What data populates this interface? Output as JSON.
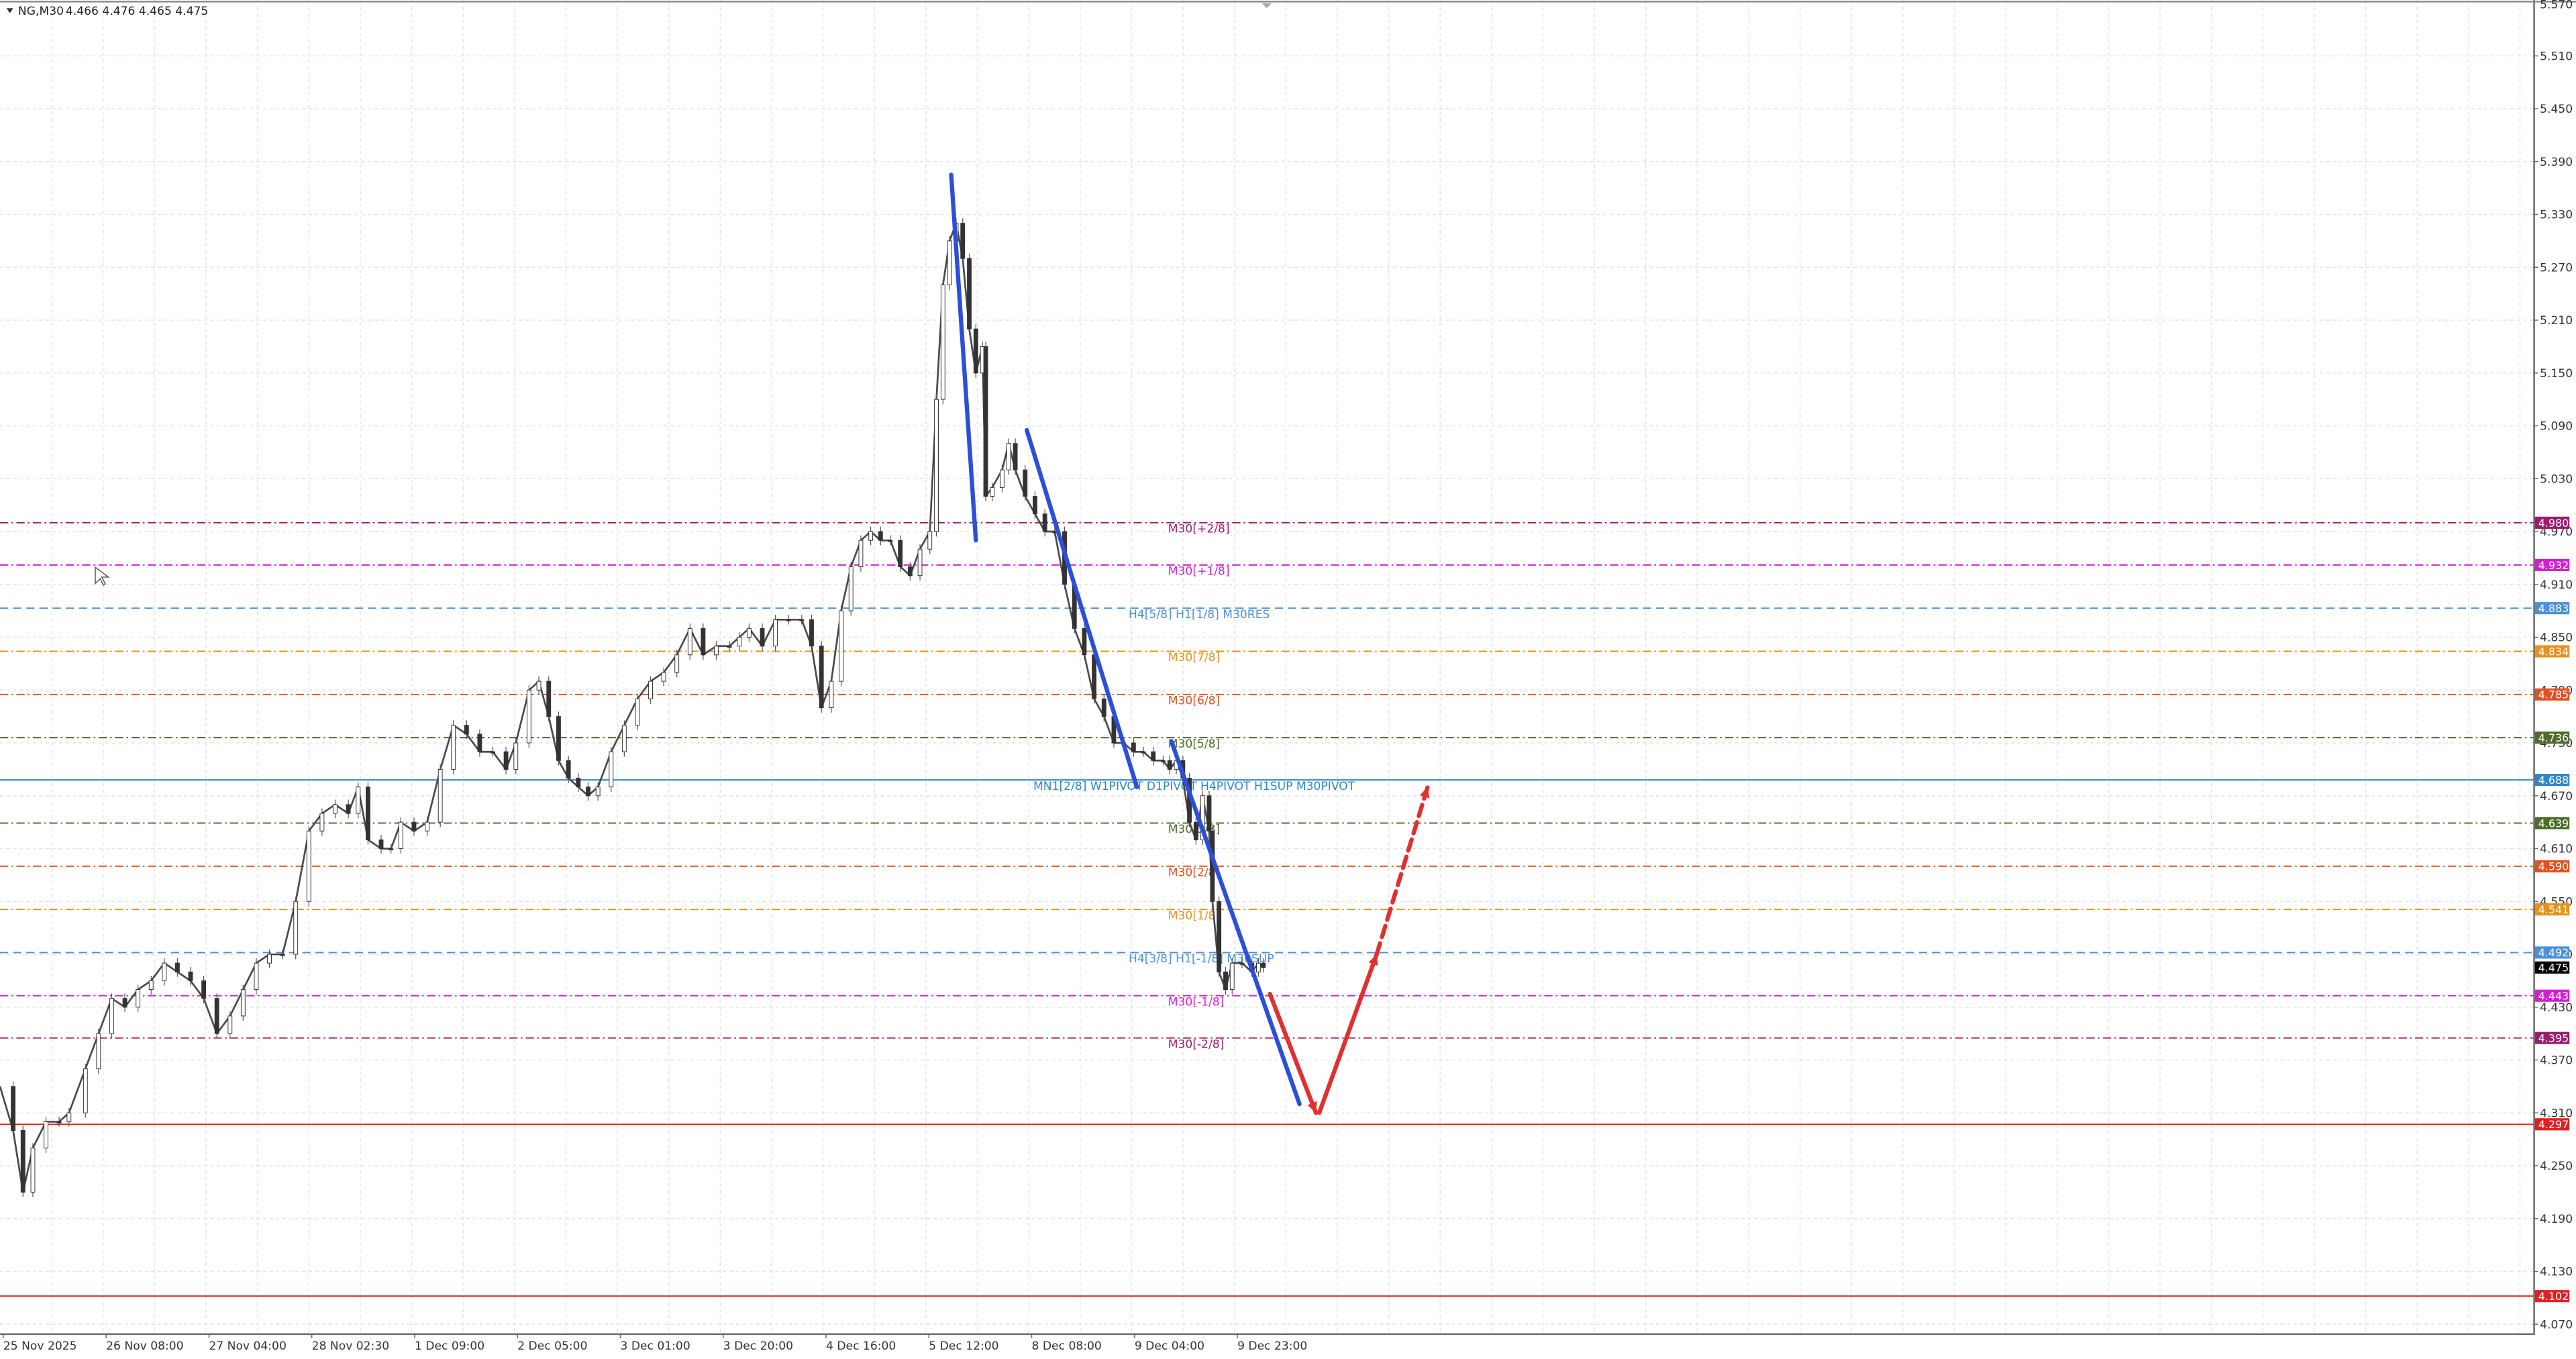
{
  "header": {
    "symbol_label": "NG,M30",
    "ohlc": "4.466 4.476 4.465 4.475"
  },
  "chart_data": {
    "type": "candlestick",
    "symbol": "NG",
    "timeframe": "M30",
    "ylim": [
      4.03,
      5.57
    ],
    "grid": true,
    "y_ticks": [
      "5.510",
      "5.450",
      "5.390",
      "5.330",
      "5.270",
      "5.210",
      "5.150",
      "5.090",
      "5.030",
      "4.970",
      "4.910",
      "4.850",
      "4.790",
      "4.730",
      "4.670",
      "4.610",
      "4.550",
      "4.490",
      "4.430",
      "4.370",
      "4.310",
      "4.250",
      "4.190",
      "4.130",
      "4.070"
    ],
    "x_labels": [
      "25 Nov 2025",
      "26 Nov 08:00",
      "27 Nov 04:00",
      "28 Nov 02:30",
      "1 Dec 09:00",
      "2 Dec 05:00",
      "3 Dec 01:00",
      "3 Dec 20:00",
      "4 Dec 16:00",
      "5 Dec 12:00",
      "8 Dec 08:00",
      "9 Dec 04:00",
      "9 Dec 23:00"
    ],
    "levels": [
      {
        "name": "M30[+2/8]",
        "value": 4.98,
        "color": "#9c1c6c",
        "price_label": "4.980",
        "label": "M30[+2/8]"
      },
      {
        "name": "M30[+1/8]",
        "value": 4.932,
        "color": "#d21fd2",
        "price_label": "4.932",
        "label": "M30[+1/8]"
      },
      {
        "name": "H4[5/8] H1[1/8] M30RES",
        "value": 4.883,
        "color": "#4a90d9",
        "price_label": "4.883",
        "label": "H4[5/8] H1[1/8] M30RES"
      },
      {
        "name": "M30[7/8]",
        "value": 4.834,
        "color": "#e8901a",
        "price_label": "4.834",
        "label": "M30[7/8]"
      },
      {
        "name": "M30[6/8]",
        "value": 4.785,
        "color": "#e05020",
        "price_label": "4.785",
        "label": "M30[6/8]"
      },
      {
        "name": "M30[5/8]",
        "value": 4.736,
        "color": "#4e6b2a",
        "price_label": "4.736",
        "label": "M30[5/8]"
      },
      {
        "name": "MN1[2/8] W1PIVOT D1PIVOT H4PIVOT H1SUP M30PIVOT",
        "value": 4.688,
        "color": "#2e86c8",
        "price_label": "4.688",
        "label": "MN1[2/8] W1PIVOT D1PIVOT H4PIVOT H1SUP M30PIVOT"
      },
      {
        "name": "M30[3/8]",
        "value": 4.639,
        "color": "#4e6b2a",
        "price_label": "4.639",
        "label": "M30[3/8]"
      },
      {
        "name": "M30[2/8]",
        "value": 4.59,
        "color": "#e05020",
        "price_label": "4.590",
        "label": "M30[2/8]"
      },
      {
        "name": "M30[1/8]",
        "value": 4.541,
        "color": "#e8901a",
        "price_label": "4.541",
        "label": "M30[1/8]"
      },
      {
        "name": "H4[3/8] H1[-1/8] M30SUP",
        "value": 4.492,
        "color": "#4a90d9",
        "price_label": "4.492",
        "label": "H4[3/8] H1[-1/8] M30SUP"
      },
      {
        "name": "M30[-1/8]",
        "value": 4.443,
        "color": "#d21fd2",
        "price_label": "4.443",
        "label": "M30[-1/8]"
      },
      {
        "name": "M30[-2/8]",
        "value": 4.395,
        "color": "#9c1c6c",
        "price_label": "4.395",
        "label": "M30[-2/8]"
      },
      {
        "name": "support-1",
        "value": 4.297,
        "color": "#e02020",
        "price_label": "4.297",
        "label": ""
      },
      {
        "name": "support-2",
        "value": 4.102,
        "color": "#e02020",
        "price_label": "4.102",
        "label": ""
      }
    ],
    "current_price": {
      "value": 4.475,
      "price_label": "4.475",
      "color": "#000000"
    },
    "close_path": [
      [
        0,
        4.34
      ],
      [
        8,
        4.29
      ],
      [
        14,
        4.22
      ],
      [
        20,
        4.27
      ],
      [
        28,
        4.3
      ],
      [
        36,
        4.3
      ],
      [
        42,
        4.31
      ],
      [
        52,
        4.36
      ],
      [
        60,
        4.4
      ],
      [
        68,
        4.44
      ],
      [
        76,
        4.43
      ],
      [
        84,
        4.45
      ],
      [
        92,
        4.46
      ],
      [
        100,
        4.48
      ],
      [
        108,
        4.47
      ],
      [
        116,
        4.46
      ],
      [
        124,
        4.44
      ],
      [
        132,
        4.4
      ],
      [
        140,
        4.42
      ],
      [
        148,
        4.45
      ],
      [
        156,
        4.48
      ],
      [
        164,
        4.49
      ],
      [
        172,
        4.49
      ],
      [
        180,
        4.55
      ],
      [
        188,
        4.63
      ],
      [
        196,
        4.65
      ],
      [
        204,
        4.66
      ],
      [
        212,
        4.65
      ],
      [
        218,
        4.68
      ],
      [
        224,
        4.62
      ],
      [
        232,
        4.61
      ],
      [
        238,
        4.61
      ],
      [
        244,
        4.64
      ],
      [
        252,
        4.63
      ],
      [
        260,
        4.64
      ],
      [
        268,
        4.7
      ],
      [
        276,
        4.75
      ],
      [
        284,
        4.74
      ],
      [
        292,
        4.72
      ],
      [
        300,
        4.72
      ],
      [
        308,
        4.7
      ],
      [
        314,
        4.73
      ],
      [
        322,
        4.79
      ],
      [
        328,
        4.8
      ],
      [
        334,
        4.76
      ],
      [
        340,
        4.71
      ],
      [
        346,
        4.69
      ],
      [
        352,
        4.68
      ],
      [
        358,
        4.67
      ],
      [
        364,
        4.68
      ],
      [
        372,
        4.72
      ],
      [
        380,
        4.75
      ],
      [
        388,
        4.78
      ],
      [
        396,
        4.8
      ],
      [
        404,
        4.81
      ],
      [
        412,
        4.83
      ],
      [
        420,
        4.86
      ],
      [
        428,
        4.83
      ],
      [
        436,
        4.84
      ],
      [
        444,
        4.84
      ],
      [
        450,
        4.85
      ],
      [
        456,
        4.86
      ],
      [
        464,
        4.84
      ],
      [
        472,
        4.87
      ],
      [
        480,
        4.87
      ],
      [
        488,
        4.87
      ],
      [
        494,
        4.84
      ],
      [
        500,
        4.77
      ],
      [
        506,
        4.8
      ],
      [
        512,
        4.88
      ],
      [
        518,
        4.93
      ],
      [
        524,
        4.96
      ],
      [
        530,
        4.97
      ],
      [
        536,
        4.96
      ],
      [
        542,
        4.96
      ],
      [
        548,
        4.93
      ],
      [
        554,
        4.92
      ],
      [
        560,
        4.95
      ],
      [
        566,
        4.97
      ],
      [
        570,
        5.12
      ],
      [
        574,
        5.25
      ],
      [
        578,
        5.3
      ],
      [
        582,
        5.32
      ],
      [
        586,
        5.28
      ],
      [
        590,
        5.2
      ],
      [
        594,
        5.15
      ],
      [
        598,
        5.18
      ],
      [
        600,
        5.01
      ],
      [
        604,
        5.02
      ],
      [
        610,
        5.04
      ],
      [
        614,
        5.07
      ],
      [
        618,
        5.04
      ],
      [
        624,
        5.01
      ],
      [
        630,
        4.99
      ],
      [
        636,
        4.97
      ],
      [
        642,
        4.97
      ],
      [
        648,
        4.91
      ],
      [
        654,
        4.86
      ],
      [
        660,
        4.83
      ],
      [
        666,
        4.78
      ],
      [
        672,
        4.76
      ],
      [
        678,
        4.73
      ],
      [
        684,
        4.73
      ],
      [
        690,
        4.72
      ],
      [
        696,
        4.72
      ],
      [
        702,
        4.71
      ],
      [
        708,
        4.71
      ],
      [
        712,
        4.7
      ],
      [
        716,
        4.71
      ],
      [
        720,
        4.69
      ],
      [
        724,
        4.64
      ],
      [
        728,
        4.62
      ],
      [
        732,
        4.67
      ],
      [
        736,
        4.63
      ],
      [
        738,
        4.55
      ],
      [
        742,
        4.47
      ],
      [
        746,
        4.45
      ],
      [
        750,
        4.48
      ],
      [
        756,
        4.48
      ],
      [
        762,
        4.47
      ],
      [
        766,
        4.48
      ],
      [
        769,
        4.475
      ]
    ],
    "drawings": [
      {
        "name": "trend-line-1",
        "color": "#2b4fd8",
        "style": "solid",
        "points": [
          [
            579,
            5.375
          ],
          [
            594,
            4.96
          ]
        ]
      },
      {
        "name": "trend-line-2",
        "color": "#2b4fd8",
        "style": "solid",
        "points": [
          [
            625,
            5.085
          ],
          [
            692,
            4.68
          ]
        ]
      },
      {
        "name": "trend-line-3",
        "color": "#2b4fd8",
        "style": "solid",
        "points": [
          [
            713,
            4.732
          ],
          [
            791,
            4.32
          ]
        ]
      },
      {
        "name": "forecast-down",
        "color": "#e03030",
        "style": "solid",
        "arrow": true,
        "points": [
          [
            773,
            4.445
          ],
          [
            801,
            4.31
          ]
        ]
      },
      {
        "name": "forecast-up",
        "color": "#e03030",
        "style": "solid",
        "arrow": true,
        "points": [
          [
            803,
            4.31
          ],
          [
            838,
            4.49
          ]
        ]
      },
      {
        "name": "forecast-up-dashed",
        "color": "#e03030",
        "style": "dashed",
        "arrow": true,
        "points": [
          [
            838,
            4.49
          ],
          [
            869,
            4.68
          ]
        ]
      }
    ]
  }
}
